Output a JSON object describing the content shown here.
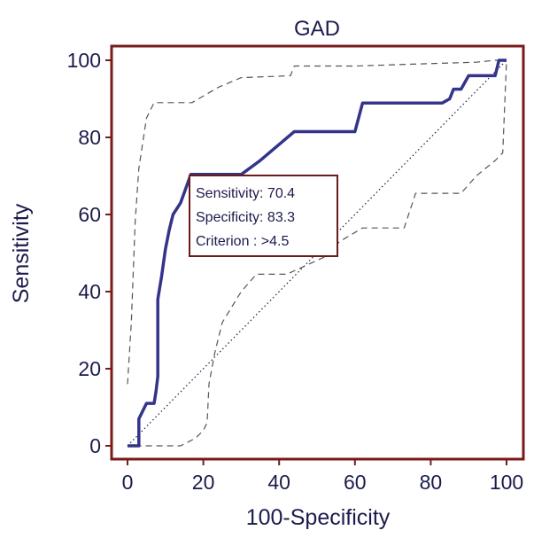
{
  "chart_data": {
    "type": "line",
    "title": "GAD",
    "xlabel": "100-Specificity",
    "ylabel": "Sensitivity",
    "xlim": [
      0,
      100
    ],
    "ylim": [
      0,
      100
    ],
    "x_ticks": [
      "0",
      "20",
      "40",
      "60",
      "80",
      "100"
    ],
    "y_ticks": [
      "0",
      "20",
      "40",
      "60",
      "80",
      "100"
    ],
    "grid": false,
    "series": [
      {
        "role": "roc-curve",
        "style": "solid",
        "color": "#33348a",
        "points": [
          [
            0,
            0
          ],
          [
            3,
            0
          ],
          [
            3,
            7
          ],
          [
            4,
            9
          ],
          [
            5,
            11
          ],
          [
            7,
            11
          ],
          [
            7.5,
            14
          ],
          [
            8,
            18
          ],
          [
            8,
            38
          ],
          [
            9,
            44
          ],
          [
            10,
            51
          ],
          [
            11,
            56
          ],
          [
            12,
            60
          ],
          [
            14,
            63
          ],
          [
            16.7,
            70.4
          ],
          [
            30,
            70.4
          ],
          [
            35,
            74
          ],
          [
            41,
            79
          ],
          [
            44,
            81.5
          ],
          [
            60,
            81.5
          ],
          [
            62,
            88.9
          ],
          [
            83,
            88.9
          ],
          [
            85,
            90
          ],
          [
            86,
            92.5
          ],
          [
            88,
            92.5
          ],
          [
            90,
            96
          ],
          [
            97,
            96
          ],
          [
            98,
            100
          ],
          [
            100,
            100
          ]
        ]
      },
      {
        "role": "upper-confidence-bound",
        "style": "dashed",
        "color": "#555555",
        "points": [
          [
            0,
            16
          ],
          [
            1,
            32
          ],
          [
            2,
            58
          ],
          [
            3,
            72
          ],
          [
            5,
            85
          ],
          [
            7,
            89
          ],
          [
            9,
            89
          ],
          [
            17,
            89
          ],
          [
            24,
            93
          ],
          [
            30,
            95.5
          ],
          [
            38,
            95.8
          ],
          [
            43,
            96
          ],
          [
            44,
            98.5
          ],
          [
            60,
            98.5
          ],
          [
            75,
            99
          ],
          [
            92,
            99.5
          ],
          [
            97,
            100
          ],
          [
            100,
            100
          ]
        ]
      },
      {
        "role": "lower-confidence-bound",
        "style": "dashed",
        "color": "#555555",
        "points": [
          [
            2,
            0
          ],
          [
            10,
            0
          ],
          [
            14,
            0
          ],
          [
            18,
            2
          ],
          [
            20,
            4
          ],
          [
            21,
            6
          ],
          [
            21.5,
            16
          ],
          [
            23,
            24
          ],
          [
            25,
            32
          ],
          [
            30,
            40
          ],
          [
            34,
            44.5
          ],
          [
            42,
            44.5
          ],
          [
            52,
            49
          ],
          [
            56,
            53
          ],
          [
            62,
            56.5
          ],
          [
            73,
            56.5
          ],
          [
            76,
            65.5
          ],
          [
            88,
            65.5
          ],
          [
            92,
            70
          ],
          [
            97,
            74
          ],
          [
            99,
            76
          ],
          [
            100,
            100
          ]
        ]
      },
      {
        "role": "reference-diagonal",
        "style": "dotted",
        "color": "#1b1b4d",
        "points": [
          [
            0,
            0
          ],
          [
            100,
            100
          ]
        ]
      }
    ],
    "annotation": {
      "lines": [
        "Sensitivity: 70.4",
        "Specificity: 83.3",
        "Criterion : >4.5"
      ]
    },
    "colors": {
      "frame": "#7a1a1a",
      "text": "#1b1b4d",
      "annotation_border": "#6b1a1a"
    }
  }
}
